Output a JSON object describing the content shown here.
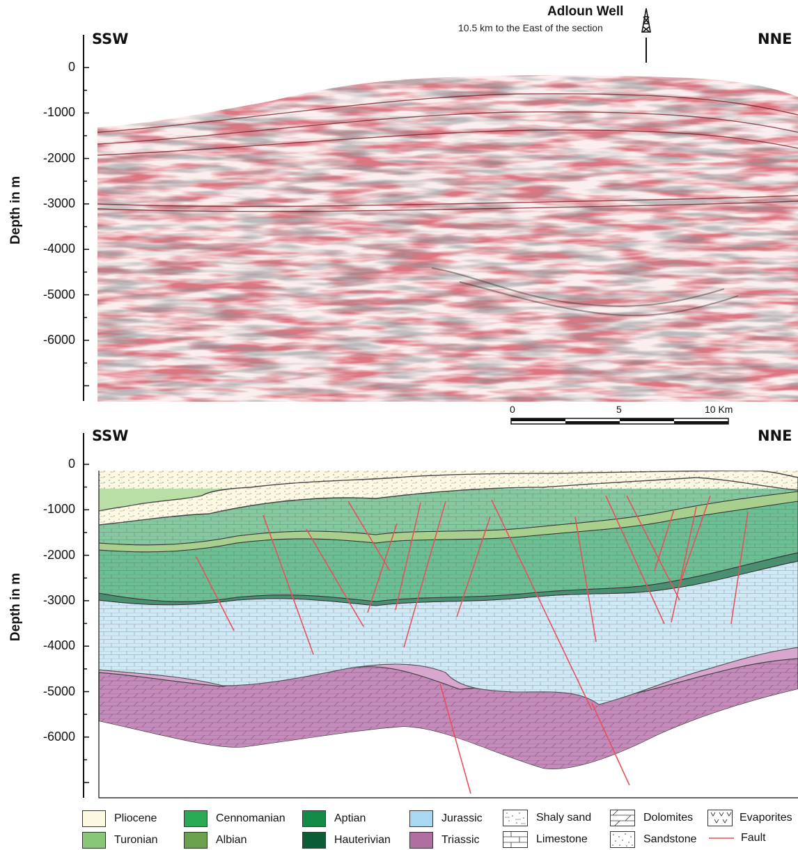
{
  "top_panel": {
    "left_direction": "SSW",
    "right_direction": "NNE",
    "y_axis_label": "Depth in m",
    "y_ticks": [
      "0",
      "-1000",
      "-2000",
      "-3000",
      "-4000",
      "-5000",
      "-6000"
    ],
    "well": {
      "name": "Adloun Well",
      "note": "10.5 km to the East of the section",
      "icon": "derrick-icon"
    },
    "scale_bar": {
      "labels": [
        "0",
        "5",
        "10 Km"
      ]
    }
  },
  "bottom_panel": {
    "left_direction": "SSW",
    "right_direction": "NNE",
    "y_axis_label": "Depth in m",
    "y_ticks": [
      "0",
      "-1000",
      "-2000",
      "-3000",
      "-4000",
      "-5000",
      "-6000"
    ]
  },
  "legend": {
    "items": [
      {
        "label": "Pliocene",
        "color": "#fdf8e1",
        "kind": "color"
      },
      {
        "label": "Turonian",
        "color": "#88c777",
        "kind": "color"
      },
      {
        "label": "Cennomanian",
        "color": "#2aaa55",
        "kind": "color"
      },
      {
        "label": "Albian",
        "color": "#6aa14a",
        "kind": "color"
      },
      {
        "label": "Aptian",
        "color": "#138a45",
        "kind": "color"
      },
      {
        "label": "Hauterivian",
        "color": "#0a5d34",
        "kind": "color"
      },
      {
        "label": "Jurassic",
        "color": "#a9d8f2",
        "kind": "color"
      },
      {
        "label": "Triassic",
        "color": "#b06fa0",
        "kind": "color"
      },
      {
        "label": "Shaly sand",
        "kind": "pattern"
      },
      {
        "label": "Limestone",
        "kind": "pattern"
      },
      {
        "label": "Dolomites",
        "kind": "pattern"
      },
      {
        "label": "Sandstone",
        "kind": "pattern"
      },
      {
        "label": "Evaporites",
        "kind": "pattern"
      },
      {
        "label": "Fault",
        "color": "#e8505a",
        "kind": "line"
      }
    ]
  }
}
